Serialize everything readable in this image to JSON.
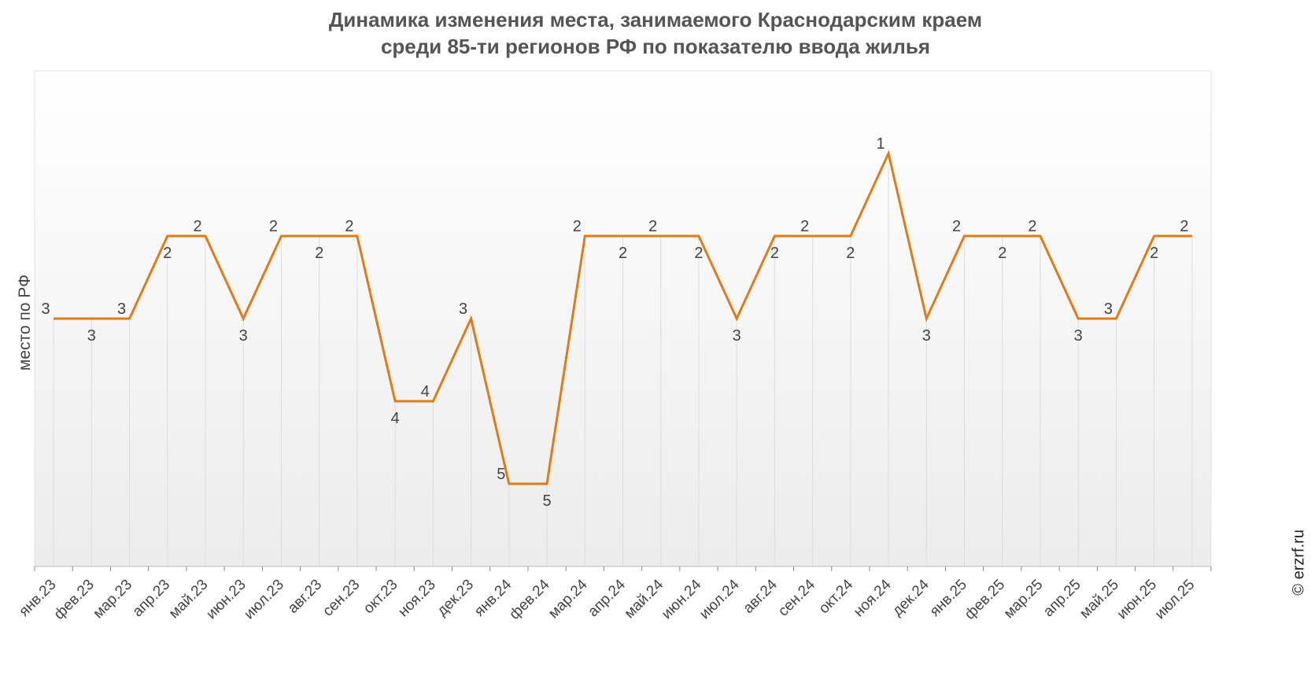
{
  "chart_data": {
    "type": "line",
    "title_lines": [
      "Динамика изменения места, занимаемого Краснодарским краем",
      "среди 85-ти регионов РФ по показателю ввода жилья"
    ],
    "xlabel": "",
    "ylabel": "место по РФ",
    "y_inverted": true,
    "ylim": [
      0,
      6
    ],
    "grid": "vertical",
    "categories": [
      "янв.23",
      "фев.23",
      "мар.23",
      "апр.23",
      "май.23",
      "июн.23",
      "июл.23",
      "авг.23",
      "сен.23",
      "окт.23",
      "ноя.23",
      "дек.23",
      "янв.24",
      "фев.24",
      "мар.24",
      "апр.24",
      "май.24",
      "июн.24",
      "июл.24",
      "авг.24",
      "сен.24",
      "окт.24",
      "ноя.24",
      "дек.24",
      "янв.25",
      "фев.25",
      "мар.25",
      "апр.25",
      "май.25",
      "июн.25",
      "июл.25"
    ],
    "series": [
      {
        "values": [
          3,
          3,
          3,
          2,
          2,
          3,
          2,
          2,
          2,
          4,
          4,
          3,
          5,
          5,
          2,
          2,
          2,
          2,
          3,
          2,
          2,
          2,
          1,
          3,
          2,
          2,
          2,
          3,
          3,
          2,
          2
        ],
        "color": "#e07b1a"
      }
    ]
  },
  "credit": "© erzrf.ru",
  "colors": {
    "line": "#e07b1a",
    "title": "#555555",
    "label": "#444444"
  }
}
